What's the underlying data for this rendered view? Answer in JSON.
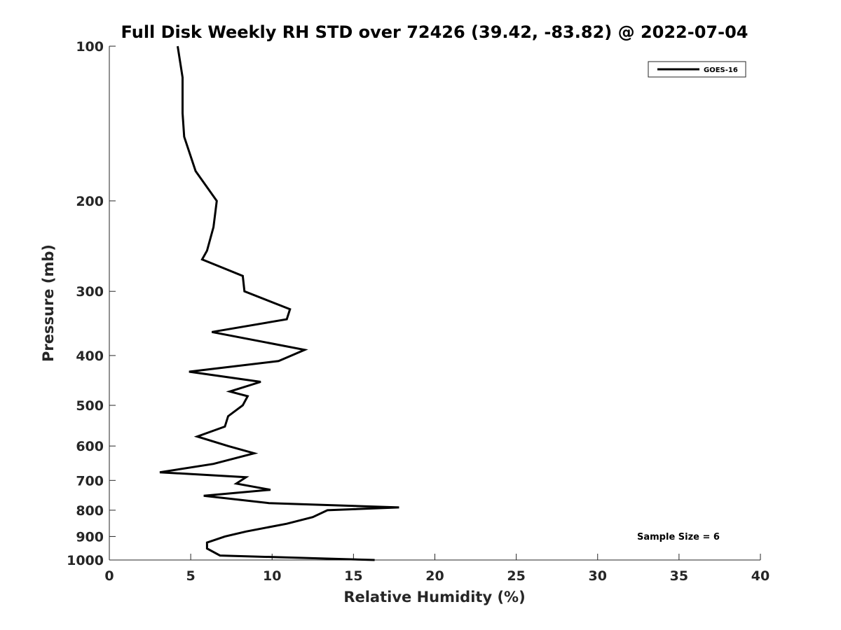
{
  "chart_data": {
    "type": "line",
    "title": "Full Disk Weekly RH STD over 72426 (39.42, -83.82) @ 2022-07-04",
    "xlabel": "Relative Humidity (%)",
    "ylabel": "Pressure (mb)",
    "xlim": [
      0,
      40
    ],
    "ylim": [
      100,
      1000
    ],
    "y_scale": "log",
    "y_reversed": true,
    "grid": false,
    "x_ticks": [
      "0",
      "5",
      "10",
      "15",
      "20",
      "25",
      "30",
      "35",
      "40"
    ],
    "y_ticks": [
      "100",
      "200",
      "300",
      "400",
      "500",
      "600",
      "700",
      "800",
      "900",
      "1000"
    ],
    "legend": {
      "position": "top-right",
      "entries": [
        "GOES-16"
      ]
    },
    "annotation": "Sample Size = 6",
    "series": [
      {
        "name": "GOES-16",
        "color": "#000000",
        "points": [
          [
            4.2,
            100
          ],
          [
            4.5,
            115
          ],
          [
            4.5,
            135
          ],
          [
            4.6,
            150
          ],
          [
            5.3,
            175
          ],
          [
            6.6,
            200
          ],
          [
            6.4,
            225
          ],
          [
            6.0,
            250
          ],
          [
            5.7,
            260
          ],
          [
            8.2,
            280
          ],
          [
            8.3,
            300
          ],
          [
            11.1,
            325
          ],
          [
            10.9,
            340
          ],
          [
            6.3,
            360
          ],
          [
            12.0,
            390
          ],
          [
            10.4,
            410
          ],
          [
            4.9,
            430
          ],
          [
            9.3,
            450
          ],
          [
            7.4,
            470
          ],
          [
            8.5,
            480
          ],
          [
            8.2,
            500
          ],
          [
            7.3,
            525
          ],
          [
            7.1,
            550
          ],
          [
            5.4,
            575
          ],
          [
            7.3,
            600
          ],
          [
            8.9,
            620
          ],
          [
            6.4,
            650
          ],
          [
            3.1,
            675
          ],
          [
            8.4,
            690
          ],
          [
            7.8,
            710
          ],
          [
            9.9,
            730
          ],
          [
            5.8,
            750
          ],
          [
            9.8,
            775
          ],
          [
            17.8,
            790
          ],
          [
            13.4,
            800
          ],
          [
            12.5,
            825
          ],
          [
            10.9,
            850
          ],
          [
            8.4,
            880
          ],
          [
            7.1,
            900
          ],
          [
            6.0,
            925
          ],
          [
            6.0,
            950
          ],
          [
            6.8,
            980
          ],
          [
            16.3,
            1000
          ]
        ]
      }
    ]
  }
}
